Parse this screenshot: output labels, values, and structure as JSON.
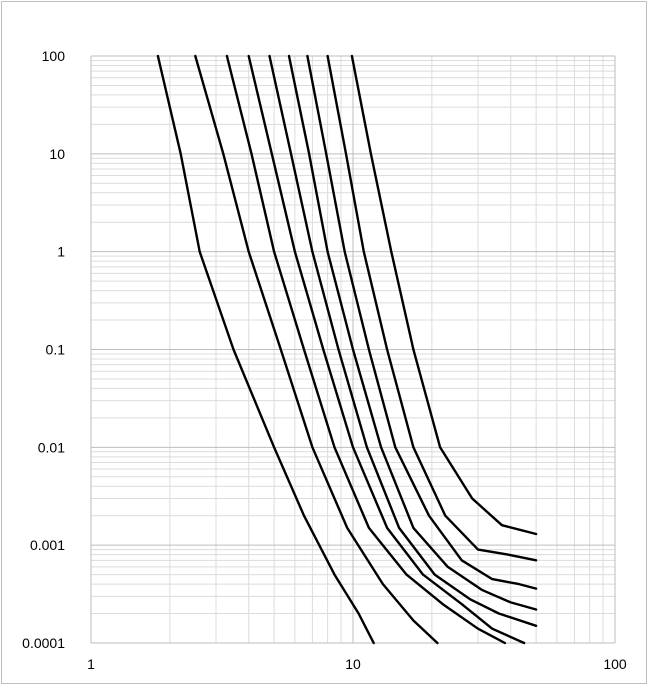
{
  "chart_data": {
    "type": "line",
    "title": "",
    "xlabel": "",
    "ylabel": "",
    "x_scale": "log",
    "y_scale": "log",
    "xlim": [
      1,
      100
    ],
    "ylim": [
      0.0001,
      100
    ],
    "grid": true,
    "x_tick_labels": [
      "1",
      "10",
      "100"
    ],
    "y_tick_labels": [
      "100",
      "10",
      "1",
      "0.1",
      "0.01",
      "0.001",
      "0.0001"
    ],
    "line_color": "#000000",
    "grid_major_color": "#bdbdbd",
    "grid_minor_color": "#dcdcdc",
    "series": [
      {
        "x": [
          1.8,
          2.2,
          2.6,
          3.5,
          5.0,
          6.5,
          8.5,
          10.5,
          12.0
        ],
        "y": [
          100,
          10,
          1,
          0.1,
          0.01,
          0.002,
          0.0005,
          0.0002,
          0.0001
        ]
      },
      {
        "x": [
          2.5,
          3.2,
          4.0,
          5.3,
          7.0,
          9.5,
          13.0,
          17.0,
          21.0
        ],
        "y": [
          100,
          10,
          1,
          0.1,
          0.01,
          0.0015,
          0.0004,
          0.00017,
          0.0001
        ]
      },
      {
        "x": [
          3.3,
          4.1,
          5.0,
          6.5,
          8.5,
          11.5,
          16.0,
          22.0,
          30.0,
          38.0
        ],
        "y": [
          100,
          10,
          1,
          0.1,
          0.01,
          0.0015,
          0.0005,
          0.00025,
          0.00014,
          0.0001
        ]
      },
      {
        "x": [
          4.0,
          4.9,
          6.0,
          7.7,
          10.0,
          13.5,
          18.5,
          26.0,
          34.0,
          45.0
        ],
        "y": [
          100,
          10,
          1,
          0.1,
          0.01,
          0.0015,
          0.0005,
          0.00025,
          0.00014,
          0.0001
        ]
      },
      {
        "x": [
          4.8,
          5.8,
          7.0,
          8.8,
          11.3,
          15.0,
          20.5,
          28.0,
          36.0,
          50.0
        ],
        "y": [
          100,
          10,
          1,
          0.1,
          0.01,
          0.0015,
          0.0005,
          0.00028,
          0.0002,
          0.00015
        ]
      },
      {
        "x": [
          5.7,
          6.8,
          8.0,
          10.0,
          12.8,
          17.0,
          23.0,
          31.0,
          40.0,
          50.0
        ],
        "y": [
          100,
          10,
          1,
          0.1,
          0.01,
          0.0015,
          0.0006,
          0.00035,
          0.00026,
          0.00022
        ]
      },
      {
        "x": [
          6.7,
          7.9,
          9.3,
          11.5,
          14.5,
          19.5,
          26.0,
          34.0,
          43.0,
          50.0
        ],
        "y": [
          100,
          10,
          1,
          0.1,
          0.01,
          0.002,
          0.0007,
          0.00045,
          0.0004,
          0.00036
        ]
      },
      {
        "x": [
          8.0,
          9.4,
          11.0,
          13.5,
          17.0,
          22.5,
          30.0,
          39.0,
          50.0
        ],
        "y": [
          100,
          10,
          1,
          0.1,
          0.01,
          0.002,
          0.0009,
          0.0008,
          0.0007
        ]
      },
      {
        "x": [
          9.9,
          11.7,
          14.0,
          17.0,
          21.5,
          28.5,
          37.0,
          50.0
        ],
        "y": [
          100,
          10,
          1,
          0.1,
          0.01,
          0.003,
          0.0016,
          0.0013
        ]
      }
    ]
  }
}
